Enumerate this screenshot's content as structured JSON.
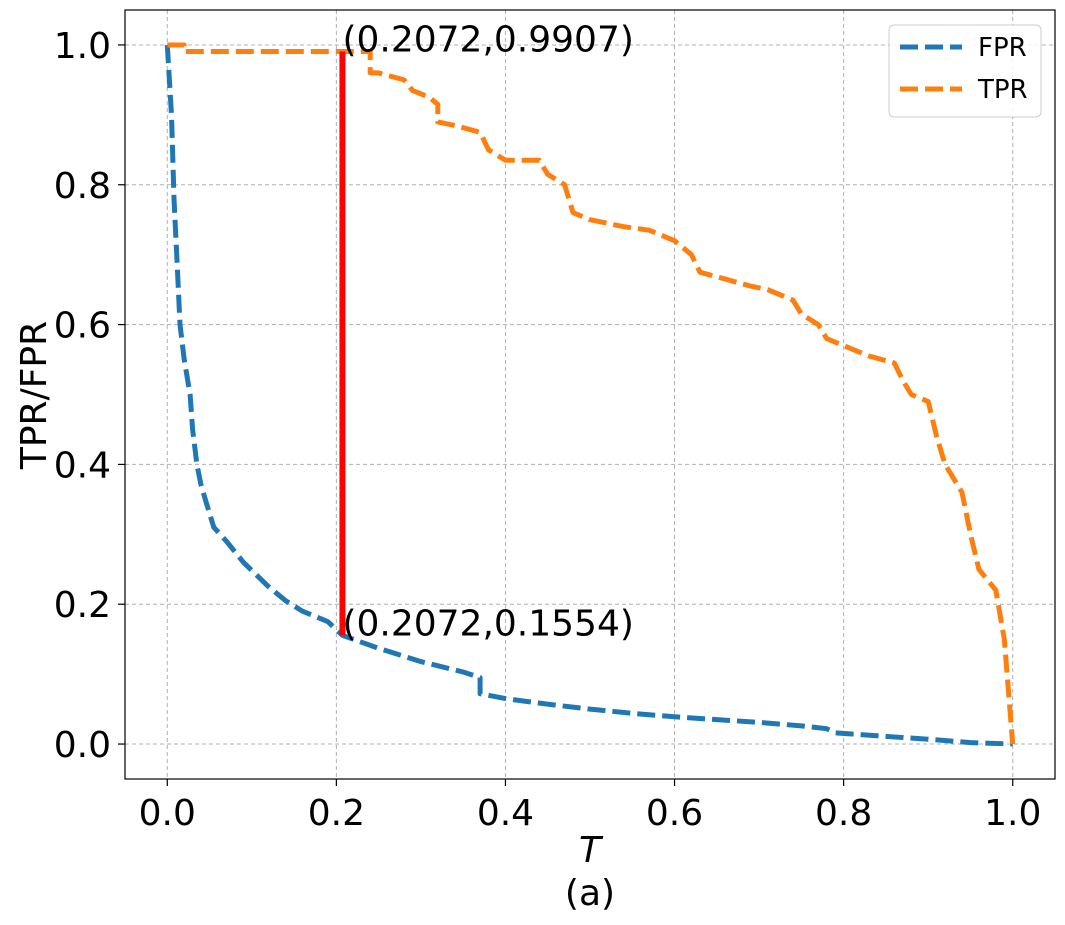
{
  "chart_data": {
    "type": "line",
    "title": "",
    "xlabel": "T",
    "ylabel": "TPR/FPR",
    "caption": "(a)",
    "xlim": [
      -0.05,
      1.05
    ],
    "ylim": [
      -0.05,
      1.05
    ],
    "xticks": [
      0.0,
      0.2,
      0.4,
      0.6,
      0.8,
      1.0
    ],
    "yticks": [
      0.0,
      0.2,
      0.4,
      0.6,
      0.8,
      1.0
    ],
    "xtick_labels": [
      "0.0",
      "0.2",
      "0.4",
      "0.6",
      "0.8",
      "1.0"
    ],
    "ytick_labels": [
      "0.0",
      "0.2",
      "0.4",
      "0.6",
      "0.8",
      "1.0"
    ],
    "grid": true,
    "legend_position": "top-right",
    "series": [
      {
        "name": "FPR",
        "color": "#1f77b4",
        "style": "dashed",
        "points": [
          [
            0.0,
            1.0
          ],
          [
            0.005,
            0.9
          ],
          [
            0.008,
            0.78
          ],
          [
            0.012,
            0.68
          ],
          [
            0.015,
            0.6
          ],
          [
            0.02,
            0.55
          ],
          [
            0.027,
            0.5
          ],
          [
            0.03,
            0.45
          ],
          [
            0.035,
            0.4
          ],
          [
            0.04,
            0.37
          ],
          [
            0.05,
            0.33
          ],
          [
            0.055,
            0.31
          ],
          [
            0.07,
            0.29
          ],
          [
            0.09,
            0.26
          ],
          [
            0.12,
            0.225
          ],
          [
            0.14,
            0.205
          ],
          [
            0.16,
            0.19
          ],
          [
            0.19,
            0.175
          ],
          [
            0.2072,
            0.1554
          ],
          [
            0.25,
            0.137
          ],
          [
            0.3,
            0.118
          ],
          [
            0.35,
            0.103
          ],
          [
            0.37,
            0.095
          ],
          [
            0.37,
            0.072
          ],
          [
            0.4,
            0.065
          ],
          [
            0.45,
            0.057
          ],
          [
            0.5,
            0.05
          ],
          [
            0.55,
            0.044
          ],
          [
            0.6,
            0.039
          ],
          [
            0.65,
            0.035
          ],
          [
            0.7,
            0.031
          ],
          [
            0.75,
            0.026
          ],
          [
            0.78,
            0.022
          ],
          [
            0.79,
            0.016
          ],
          [
            0.85,
            0.011
          ],
          [
            0.9,
            0.007
          ],
          [
            0.95,
            0.002
          ],
          [
            1.0,
            0.0
          ]
        ]
      },
      {
        "name": "TPR",
        "color": "#ff7f0e",
        "style": "dashed",
        "points": [
          [
            0.0,
            1.0
          ],
          [
            0.02,
            1.0
          ],
          [
            0.02,
            0.9907
          ],
          [
            0.2072,
            0.9907
          ],
          [
            0.24,
            0.9907
          ],
          [
            0.24,
            0.96
          ],
          [
            0.25,
            0.96
          ],
          [
            0.28,
            0.95
          ],
          [
            0.29,
            0.935
          ],
          [
            0.31,
            0.925
          ],
          [
            0.32,
            0.915
          ],
          [
            0.32,
            0.89
          ],
          [
            0.34,
            0.885
          ],
          [
            0.37,
            0.875
          ],
          [
            0.38,
            0.85
          ],
          [
            0.4,
            0.835
          ],
          [
            0.43,
            0.835
          ],
          [
            0.44,
            0.835
          ],
          [
            0.45,
            0.815
          ],
          [
            0.47,
            0.8
          ],
          [
            0.48,
            0.76
          ],
          [
            0.5,
            0.75
          ],
          [
            0.52,
            0.745
          ],
          [
            0.54,
            0.74
          ],
          [
            0.57,
            0.735
          ],
          [
            0.59,
            0.725
          ],
          [
            0.6,
            0.72
          ],
          [
            0.62,
            0.7
          ],
          [
            0.63,
            0.675
          ],
          [
            0.66,
            0.665
          ],
          [
            0.69,
            0.655
          ],
          [
            0.71,
            0.65
          ],
          [
            0.74,
            0.635
          ],
          [
            0.75,
            0.615
          ],
          [
            0.77,
            0.6
          ],
          [
            0.78,
            0.58
          ],
          [
            0.8,
            0.57
          ],
          [
            0.83,
            0.555
          ],
          [
            0.86,
            0.545
          ],
          [
            0.87,
            0.52
          ],
          [
            0.88,
            0.5
          ],
          [
            0.9,
            0.49
          ],
          [
            0.91,
            0.44
          ],
          [
            0.92,
            0.4
          ],
          [
            0.94,
            0.36
          ],
          [
            0.95,
            0.3
          ],
          [
            0.96,
            0.25
          ],
          [
            0.98,
            0.22
          ],
          [
            0.99,
            0.15
          ],
          [
            1.0,
            0.0
          ]
        ]
      }
    ],
    "threshold_line": {
      "x": 0.2072,
      "y_low": 0.1554,
      "y_high": 0.9907,
      "color": "#ff0000"
    },
    "annotations": [
      {
        "text": "(0.2072,0.9907)",
        "x": 0.2072,
        "y": 0.9907
      },
      {
        "text": "(0.2072,0.1554)",
        "x": 0.2072,
        "y": 0.1554
      }
    ]
  }
}
